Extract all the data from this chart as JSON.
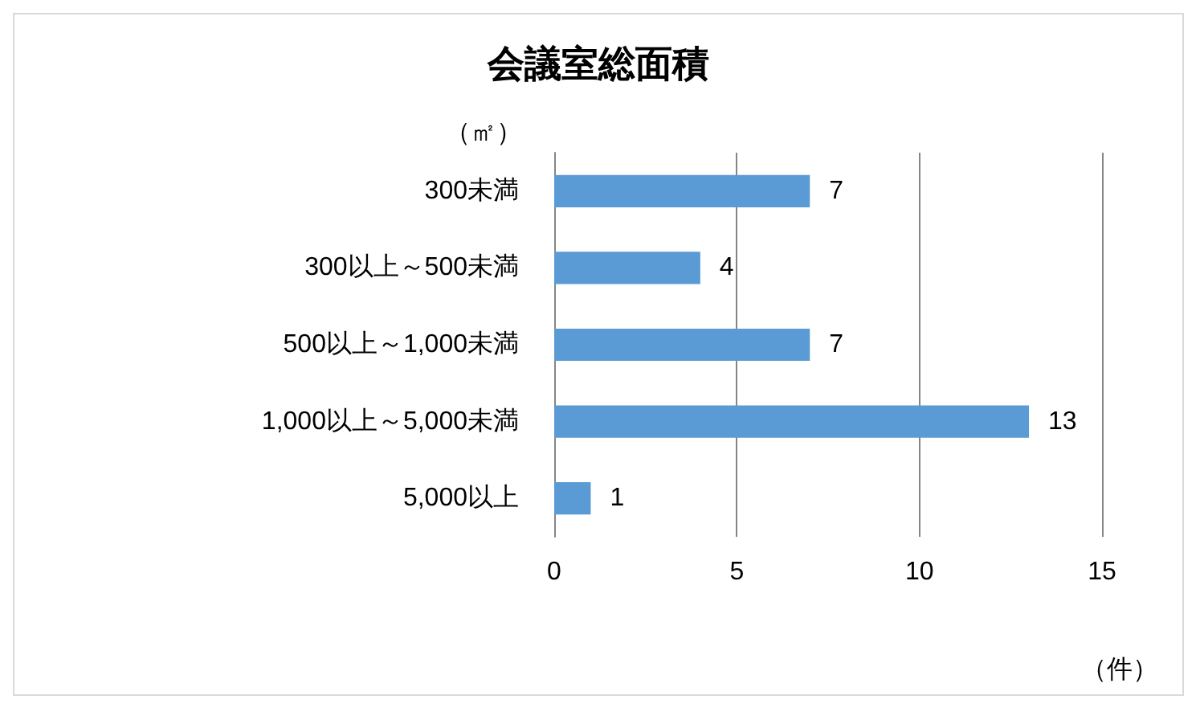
{
  "chart_data": {
    "type": "bar",
    "orientation": "horizontal",
    "title": "会議室総面積",
    "ylabel": "（㎡）",
    "xlabel": "（件）",
    "categories": [
      "300未満",
      "300以上～500未満",
      "500以上～1,000未満",
      "1,000以上～5,000未満",
      "5,000以上"
    ],
    "values": [
      7,
      4,
      7,
      13,
      1
    ],
    "color": "#5b9bd5",
    "xlim": [
      0,
      15
    ],
    "xticks": [
      0,
      5,
      10,
      15
    ],
    "grid": "x",
    "data_labels": true
  }
}
